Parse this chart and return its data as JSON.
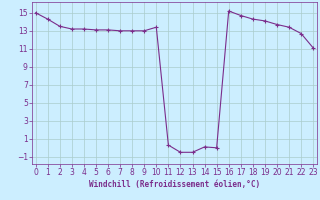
{
  "x": [
    0,
    1,
    2,
    3,
    4,
    5,
    6,
    7,
    8,
    9,
    10,
    11,
    12,
    13,
    14,
    15,
    16,
    17,
    18,
    19,
    20,
    21,
    22,
    23
  ],
  "y": [
    15,
    14.3,
    13.5,
    13.2,
    13.2,
    13.1,
    13.1,
    13.0,
    13.0,
    13.0,
    13.4,
    0.3,
    -0.5,
    -0.5,
    0.1,
    0.0,
    15.2,
    14.7,
    14.3,
    14.1,
    13.7,
    13.4,
    12.7,
    11.1
  ],
  "line_color": "#7b2d8b",
  "marker": "+",
  "marker_size": 3,
  "bg_color": "#cceeff",
  "grid_color": "#aacccc",
  "xlabel": "Windchill (Refroidissement éolien,°C)",
  "xlabel_fontsize": 5.5,
  "yticks": [
    -1,
    1,
    3,
    5,
    7,
    9,
    11,
    13,
    15
  ],
  "xticks": [
    0,
    1,
    2,
    3,
    4,
    5,
    6,
    7,
    8,
    9,
    10,
    11,
    12,
    13,
    14,
    15,
    16,
    17,
    18,
    19,
    20,
    21,
    22,
    23
  ],
  "ylim": [
    -1.8,
    16.2
  ],
  "xlim": [
    -0.3,
    23.3
  ],
  "tick_color": "#7b2d8b",
  "tick_fontsize": 5.5,
  "linewidth": 0.8,
  "markeredgewidth": 0.8
}
